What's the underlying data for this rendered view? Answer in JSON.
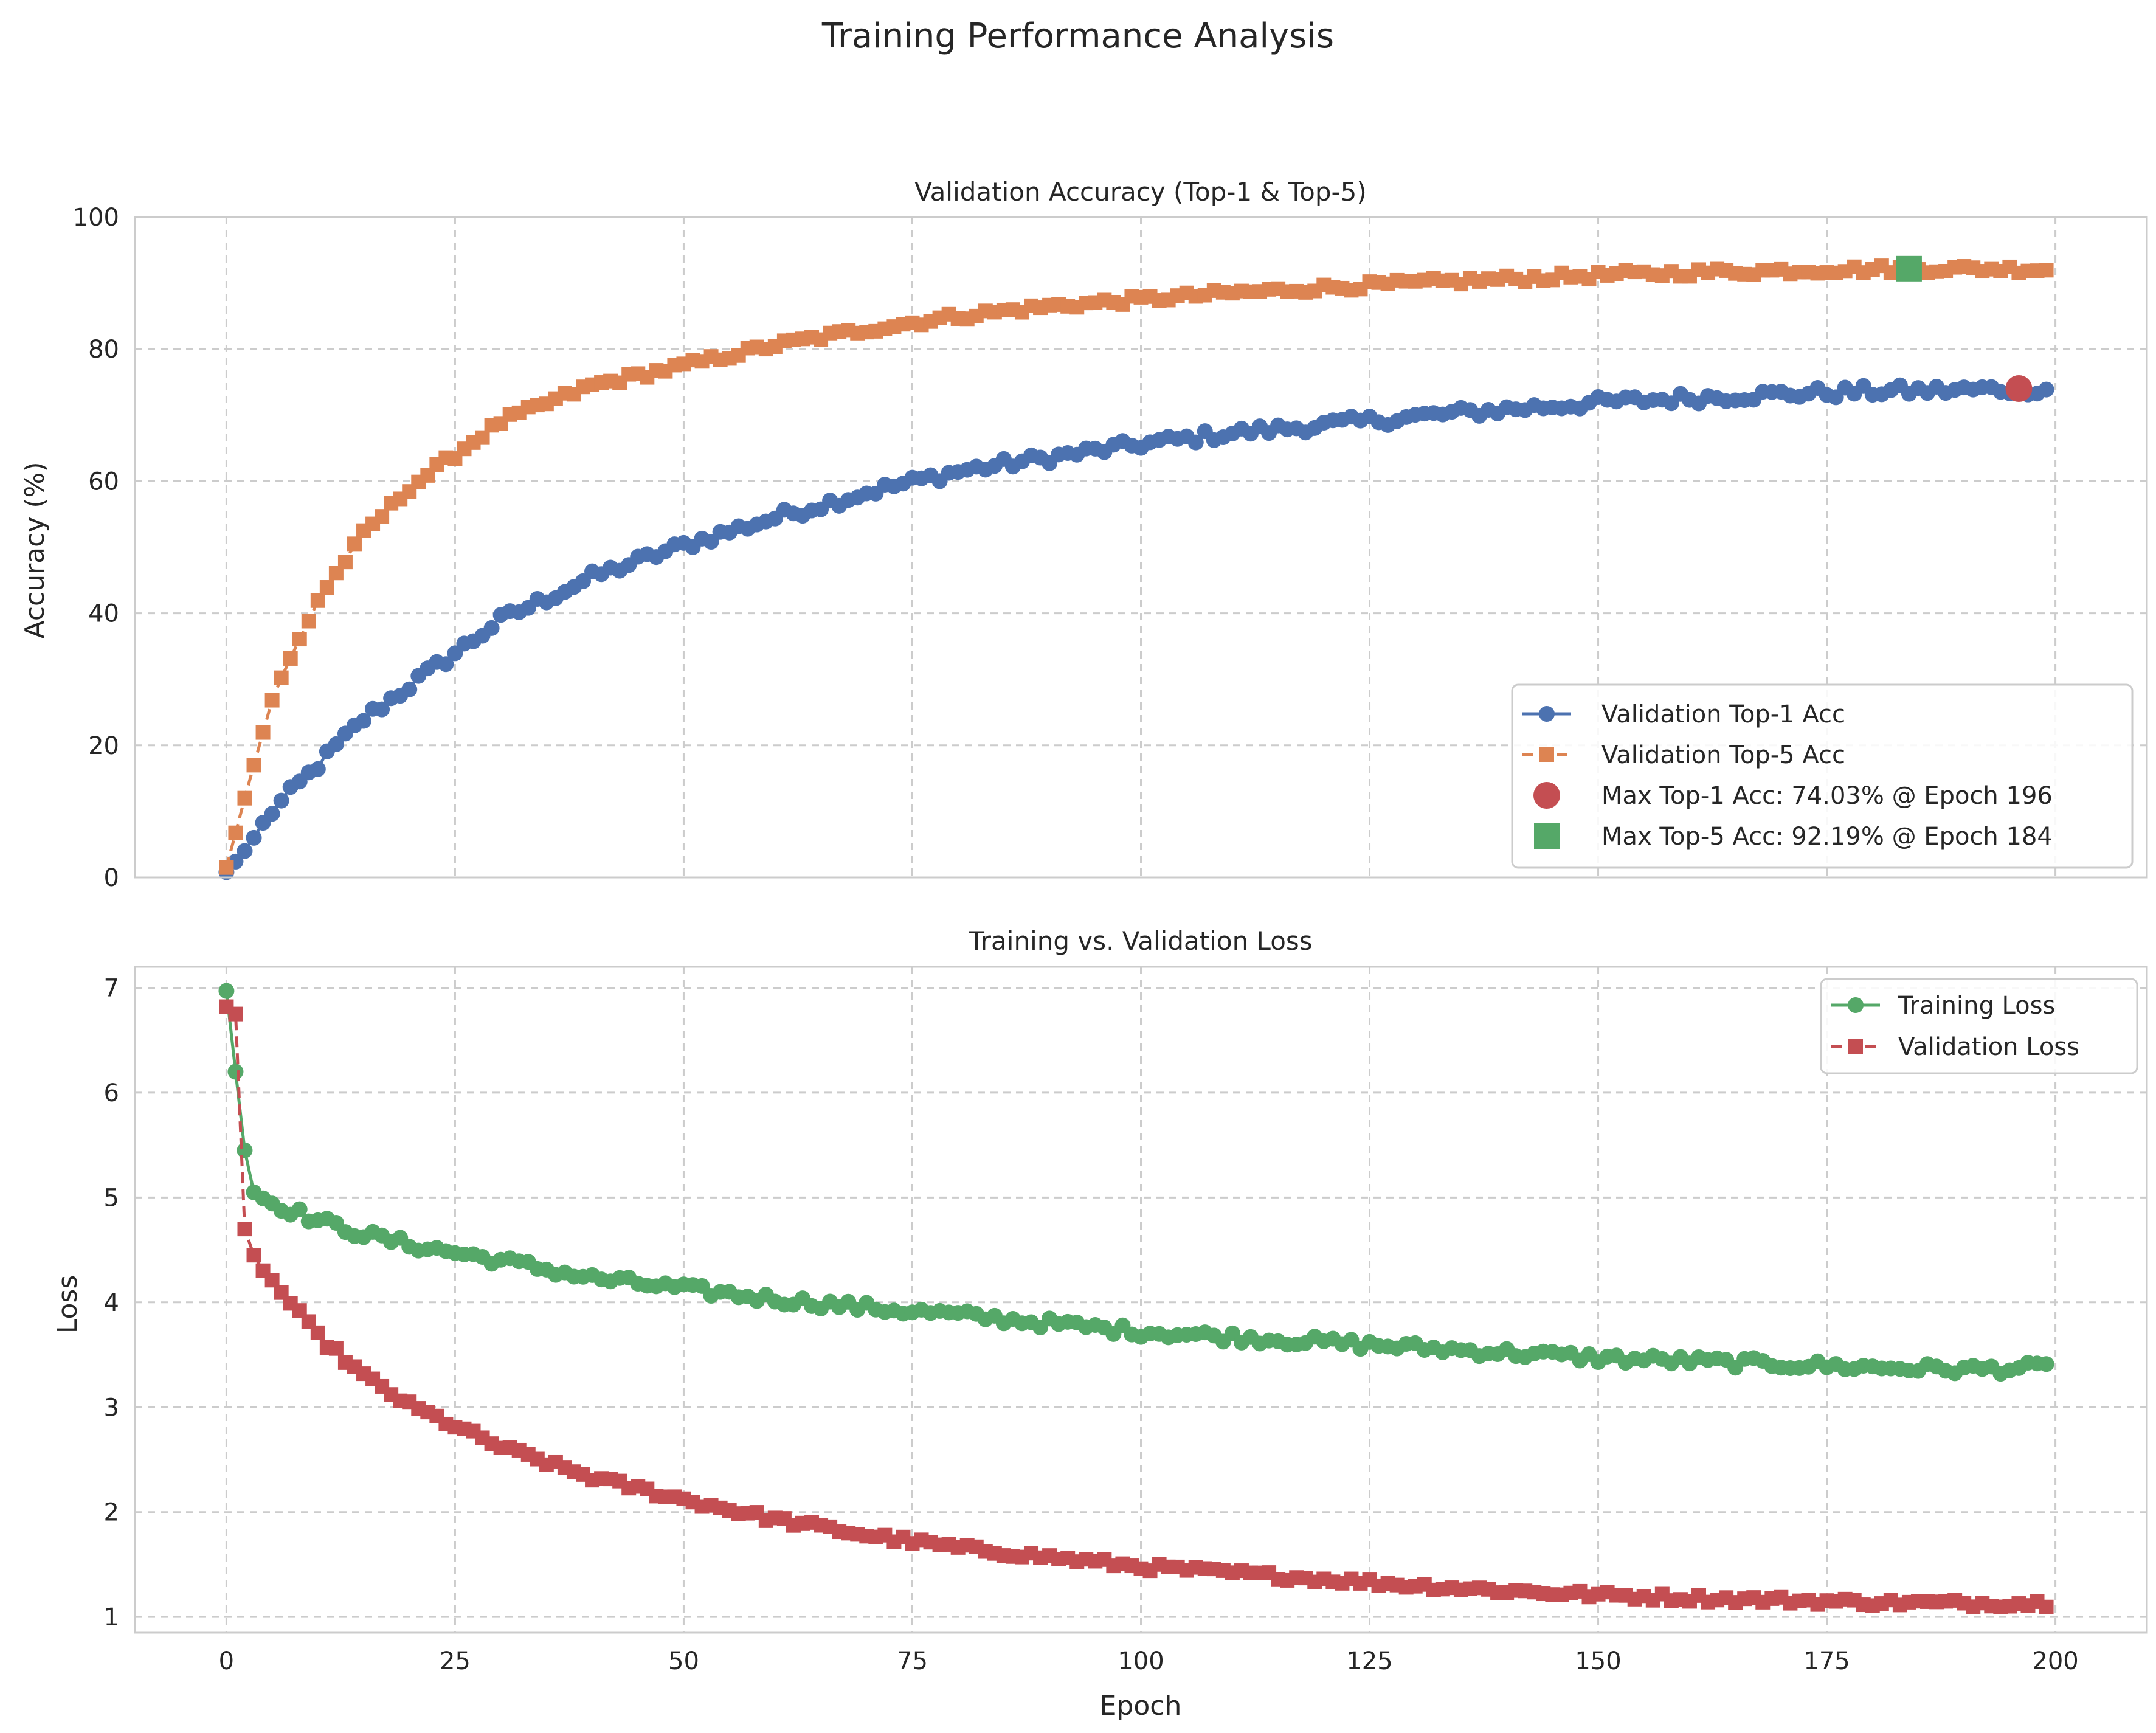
{
  "figure": {
    "title": "Training Performance Analysis"
  },
  "colors": {
    "top1": "#4C72B0",
    "top5": "#DD8452",
    "train_loss": "#55A868",
    "val_loss": "#C44E52",
    "grid": "#cccccc",
    "axes_edge": "#cccccc",
    "text": "#262626"
  },
  "chart_data": [
    {
      "type": "line",
      "title": "Validation Accuracy (Top-1 & Top-5)",
      "xlabel": "",
      "ylabel": "Accuracy (%)",
      "xlim": [
        0,
        200
      ],
      "ylim": [
        0,
        100
      ],
      "x_ticks": [
        0,
        25,
        50,
        75,
        100,
        125,
        150,
        175,
        200
      ],
      "y_ticks": [
        0,
        20,
        40,
        60,
        80,
        100
      ],
      "grid": true,
      "legend_position": "lower-right",
      "series": [
        {
          "name": "Validation Top-1 Acc",
          "marker": "circle",
          "linestyle": "solid",
          "anchors": [
            [
              0,
              0.8
            ],
            [
              2,
              4
            ],
            [
              5,
              10
            ],
            [
              10,
              17
            ],
            [
              15,
              24
            ],
            [
              20,
              29
            ],
            [
              25,
              34
            ],
            [
              30,
              39
            ],
            [
              40,
              45.5
            ],
            [
              50,
              50.3
            ],
            [
              60,
              54.5
            ],
            [
              70,
              58.3
            ],
            [
              80,
              61.5
            ],
            [
              90,
              63.6
            ],
            [
              100,
              65.6
            ],
            [
              110,
              67.3
            ],
            [
              120,
              68.5
            ],
            [
              130,
              69.8
            ],
            [
              140,
              70.9
            ],
            [
              150,
              71.9
            ],
            [
              160,
              72.6
            ],
            [
              170,
              73.2
            ],
            [
              180,
              73.6
            ],
            [
              190,
              73.8
            ],
            [
              196,
              74.03
            ],
            [
              199,
              73.9
            ]
          ]
        },
        {
          "name": "Validation Top-5 Acc",
          "marker": "square",
          "linestyle": "dashed",
          "anchors": [
            [
              0,
              1.5
            ],
            [
              2,
              12
            ],
            [
              5,
              27
            ],
            [
              10,
              42
            ],
            [
              15,
              52
            ],
            [
              20,
              59
            ],
            [
              25,
              64
            ],
            [
              30,
              69
            ],
            [
              40,
              74.5
            ],
            [
              50,
              77.5
            ],
            [
              60,
              80.6
            ],
            [
              70,
              83
            ],
            [
              80,
              85
            ],
            [
              90,
              86.5
            ],
            [
              100,
              87.5
            ],
            [
              110,
              88.5
            ],
            [
              120,
              89.3
            ],
            [
              130,
              90
            ],
            [
              140,
              90.6
            ],
            [
              150,
              91.2
            ],
            [
              160,
              91.6
            ],
            [
              170,
              91.9
            ],
            [
              180,
              92.1
            ],
            [
              184,
              92.19
            ],
            [
              199,
              92.1
            ]
          ]
        }
      ],
      "annotations": [
        {
          "name": "Max Top-1 Acc: 74.03% @ Epoch 196",
          "x": 196,
          "y": 74.03,
          "marker": "circle"
        },
        {
          "name": "Max Top-5 Acc: 92.19% @ Epoch 184",
          "x": 184,
          "y": 92.19,
          "marker": "square"
        }
      ]
    },
    {
      "type": "line",
      "title": "Training vs. Validation Loss",
      "xlabel": "Epoch",
      "ylabel": "Loss",
      "xlim": [
        0,
        200
      ],
      "ylim": [
        0.85,
        7.2
      ],
      "x_ticks": [
        0,
        25,
        50,
        75,
        100,
        125,
        150,
        175,
        200
      ],
      "y_ticks": [
        1,
        2,
        3,
        4,
        5,
        6,
        7
      ],
      "grid": true,
      "legend_position": "upper-right",
      "series": [
        {
          "name": "Training Loss",
          "marker": "circle",
          "linestyle": "solid",
          "anchors": [
            [
              0,
              6.97
            ],
            [
              1,
              6.2
            ],
            [
              2,
              5.45
            ],
            [
              3,
              5.05
            ],
            [
              5,
              4.95
            ],
            [
              10,
              4.78
            ],
            [
              15,
              4.65
            ],
            [
              20,
              4.55
            ],
            [
              30,
              4.4
            ],
            [
              40,
              4.23
            ],
            [
              50,
              4.13
            ],
            [
              60,
              4.03
            ],
            [
              70,
              3.95
            ],
            [
              80,
              3.88
            ],
            [
              90,
              3.8
            ],
            [
              100,
              3.72
            ],
            [
              110,
              3.67
            ],
            [
              120,
              3.62
            ],
            [
              130,
              3.57
            ],
            [
              140,
              3.52
            ],
            [
              150,
              3.47
            ],
            [
              160,
              3.44
            ],
            [
              170,
              3.41
            ],
            [
              180,
              3.38
            ],
            [
              190,
              3.36
            ],
            [
              199,
              3.38
            ]
          ]
        },
        {
          "name": "Validation Loss",
          "marker": "square",
          "linestyle": "dashed",
          "anchors": [
            [
              0,
              6.82
            ],
            [
              1,
              6.75
            ],
            [
              2,
              4.7
            ],
            [
              3,
              4.45
            ],
            [
              5,
              4.2
            ],
            [
              10,
              3.68
            ],
            [
              15,
              3.3
            ],
            [
              20,
              3.02
            ],
            [
              25,
              2.82
            ],
            [
              30,
              2.62
            ],
            [
              40,
              2.33
            ],
            [
              50,
              2.12
            ],
            [
              60,
              1.93
            ],
            [
              70,
              1.78
            ],
            [
              80,
              1.66
            ],
            [
              90,
              1.57
            ],
            [
              100,
              1.48
            ],
            [
              110,
              1.42
            ],
            [
              120,
              1.36
            ],
            [
              130,
              1.3
            ],
            [
              140,
              1.25
            ],
            [
              150,
              1.21
            ],
            [
              160,
              1.18
            ],
            [
              170,
              1.16
            ],
            [
              180,
              1.14
            ],
            [
              190,
              1.13
            ],
            [
              199,
              1.13
            ]
          ]
        }
      ]
    }
  ]
}
